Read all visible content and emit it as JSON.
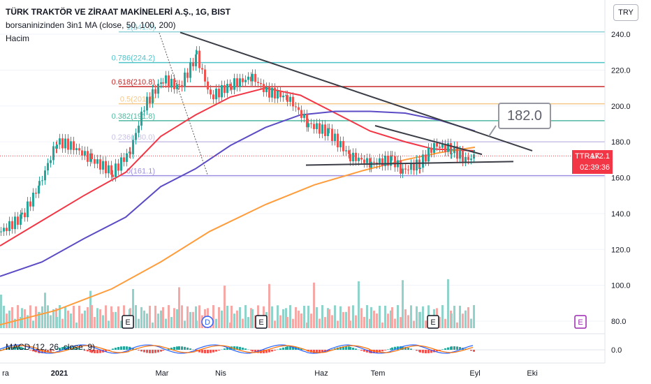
{
  "legend": {
    "title": "TÜRK TRAKTÖR VE ZİRAAT MAKİNELERİ A.Ş., 1G, BIST",
    "ma": "borsaninizinden 3in1 MA (close, 50, 100, 200)",
    "volume": "Hacim",
    "macd": "MACD (12, 26, close, 9)"
  },
  "currency": "TRY",
  "price_tag": {
    "symbol": "TTRAK",
    "value": "172.1",
    "countdown": "02:39:36"
  },
  "callout": "182.0",
  "colors": {
    "up": "#26a69a",
    "down": "#ef5350",
    "ma50": "#f23645",
    "ma100": "#5b4bc4",
    "ma200": "#ff9c3b",
    "trendline": "#3a3d46",
    "fib_grid": "#b2b5be"
  },
  "chart_data": {
    "type": "candlestick",
    "y_axis": {
      "ticks": [
        "240.0",
        "220.0",
        "200.0",
        "180.0",
        "160.0",
        "140.0",
        "120.0",
        "100.0",
        "80.0"
      ],
      "range": [
        78,
        248
      ]
    },
    "x_axis": {
      "ticks": [
        "ra",
        "2021",
        "Mar",
        "Nis",
        "Haz",
        "Tem",
        "Eyl",
        "Eki"
      ]
    },
    "fibonacci": [
      {
        "label": "1(241.3)",
        "value": 241.3,
        "color": "#8fd0d8"
      },
      {
        "label": "0.786(224.2)",
        "value": 224.2,
        "color": "#4fc3c9"
      },
      {
        "label": "0.618(210.8)",
        "value": 210.8,
        "color": "#c62828"
      },
      {
        "label": "0.5(201.2)",
        "value": 201.2,
        "color": "#f5c98a"
      },
      {
        "label": "0.382(191.8)",
        "value": 191.8,
        "color": "#4fb8a0"
      },
      {
        "label": "0.236(180.0)",
        "value": 180.0,
        "color": "#c9c2e6"
      },
      {
        "label": "0(161.1)",
        "value": 161.1,
        "color": "#9c8fe0"
      }
    ],
    "macd_axis": {
      "ticks": [
        "0.0"
      ]
    },
    "event_markers": [
      {
        "label": "E",
        "x": "Mar"
      },
      {
        "label": "D",
        "x": "Nis"
      },
      {
        "label": "E",
        "x": "Nis"
      },
      {
        "label": "E",
        "x": "Tem"
      },
      {
        "label": "E",
        "x": "Eki"
      }
    ],
    "last_price": 172.1,
    "annotations": [
      "182.0"
    ]
  }
}
